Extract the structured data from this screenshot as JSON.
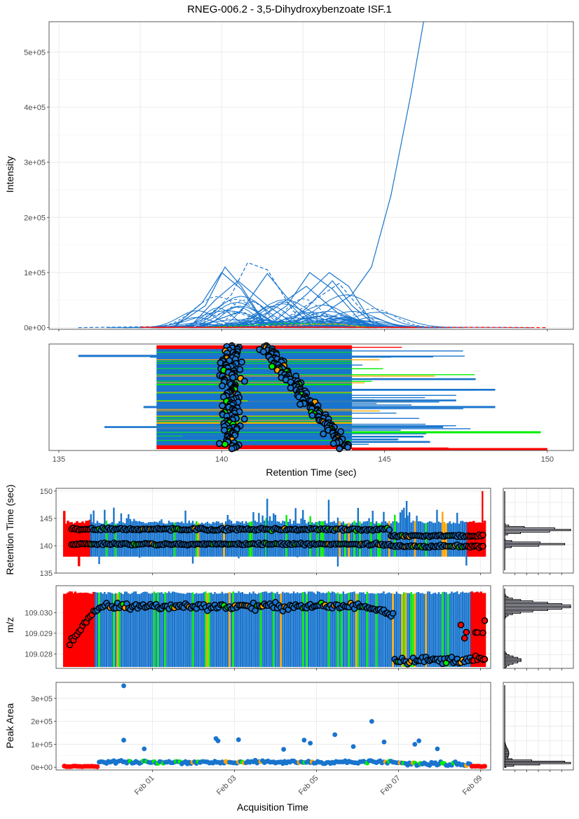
{
  "chart_data": [
    {
      "panel": "eic",
      "type": "line",
      "title": "RNEG-006.2 - 3,5-Dihydroxybenzoate ISF.1",
      "xlabel": "",
      "ylabel": "Intensity",
      "xlim": [
        134.7,
        150.8
      ],
      "ylim": [
        -3000,
        555000
      ],
      "y_ticks": [
        0,
        100000,
        200000,
        300000,
        400000,
        500000
      ],
      "y_tick_labels": [
        "0e+00",
        "1e+05",
        "2e+05",
        "3e+05",
        "4e+05",
        "5e+05"
      ],
      "grid": true,
      "colors": {
        "main": "#1874cd",
        "alt_green": "#00ee00",
        "alt_orange": "#ffa500",
        "outlier": "#ff0000"
      },
      "series": [
        {
          "style": "solid",
          "color": "#1874cd",
          "x": [
            137.0,
            141.0,
            143.0,
            144.0,
            144.6,
            145.2,
            145.8,
            146.2
          ],
          "y": [
            0,
            2000,
            20000,
            60000,
            110000,
            240000,
            420000,
            555000
          ]
        },
        {
          "style": "solid",
          "color": "#1874cd",
          "x": [
            138.5,
            139.5,
            140.1,
            140.6,
            141.3,
            142.5
          ],
          "y": [
            0,
            40000,
            110000,
            75000,
            10000,
            0
          ]
        },
        {
          "style": "solid",
          "color": "#1874cd",
          "x": [
            138.5,
            139.4,
            140.0,
            140.6,
            141.3,
            142.3
          ],
          "y": [
            0,
            45000,
            100000,
            70000,
            8000,
            0
          ]
        },
        {
          "style": "solid",
          "color": "#1874cd",
          "x": [
            139.2,
            140.6,
            141.4,
            142.0,
            142.8,
            143.6
          ],
          "y": [
            0,
            30000,
            98000,
            55000,
            10000,
            0
          ]
        },
        {
          "style": "solid",
          "color": "#1874cd",
          "x": [
            141.0,
            142.0,
            142.7,
            143.4,
            144.3,
            145.0
          ],
          "y": [
            0,
            40000,
            100000,
            70000,
            10000,
            0
          ]
        },
        {
          "style": "solid",
          "color": "#1874cd",
          "x": [
            141.4,
            142.6,
            143.3,
            143.9,
            144.6,
            145.2
          ],
          "y": [
            0,
            60000,
            100000,
            75000,
            10000,
            0
          ]
        },
        {
          "style": "solid",
          "color": "#1874cd",
          "x": [
            140.5,
            141.5,
            142.6,
            143.6,
            144.5
          ],
          "y": [
            0,
            30000,
            75000,
            25000,
            0
          ]
        },
        {
          "style": "solid",
          "color": "#1874cd",
          "x": [
            139.0,
            139.8,
            140.5,
            141.4,
            142.4
          ],
          "y": [
            0,
            50000,
            85000,
            40000,
            0
          ]
        },
        {
          "style": "solid",
          "color": "#1874cd",
          "x": [
            141.8,
            142.6,
            143.4,
            144.0,
            144.8
          ],
          "y": [
            0,
            35000,
            85000,
            40000,
            0
          ]
        },
        {
          "style": "dashed",
          "color": "#1874cd",
          "x": [
            139.3,
            140.3,
            140.8,
            141.4,
            142.2,
            143.0
          ],
          "y": [
            0,
            60000,
            118000,
            105000,
            30000,
            0
          ]
        },
        {
          "style": "dashed",
          "color": "#1874cd",
          "x": [
            141.5,
            142.6,
            143.6,
            144.4,
            145.0
          ],
          "y": [
            0,
            40000,
            80000,
            25000,
            0
          ]
        },
        {
          "style": "dashed",
          "color": "#1874cd",
          "x": [
            135.6,
            137.5,
            140.0,
            143.0,
            146.5,
            149.5
          ],
          "y": [
            0,
            1500,
            3000,
            2500,
            1000,
            0
          ]
        },
        {
          "style": "dashed",
          "color": "#00ee00",
          "x": [
            139.0,
            140.5,
            142.0,
            143.5,
            144.8
          ],
          "y": [
            0,
            3000,
            8000,
            6000,
            0
          ]
        },
        {
          "style": "dashed",
          "color": "#ffa500",
          "x": [
            140.5,
            142.0,
            143.5,
            144.5
          ],
          "y": [
            0,
            4000,
            7000,
            0
          ]
        },
        {
          "style": "solid",
          "color": "#ff0000",
          "x": [
            138.0,
            140.0,
            142.0,
            144.0,
            146.0
          ],
          "y": [
            0,
            800,
            1200,
            800,
            0
          ]
        },
        {
          "style": "dashed",
          "color": "#ff0000",
          "x": [
            144.5,
            146.5,
            148.5,
            150.0
          ],
          "y": [
            0,
            500,
            400,
            0
          ]
        }
      ],
      "description_of_bulk": "Many additional overlapping peaks between 139 and 145 sec with intensities mostly below 60000."
    },
    {
      "panel": "rt_ranges",
      "type": "scatter",
      "xlabel": "Retention Time (sec)",
      "ylabel": "",
      "xlim": [
        134.7,
        150.8
      ],
      "x_ticks": [
        135,
        140,
        145,
        150
      ],
      "x_tick_labels": [
        "135",
        "140",
        "145",
        "150"
      ],
      "grid": false,
      "notes": "Horizontal bars = integrated RT range per sample; circles = RT at peak apex. Samples stacked vertically.",
      "bar_left_typical": 138.0,
      "bar_right_typical": 144.0,
      "extreme_bars": [
        {
          "x_start": 135.6,
          "x_end": 138.0,
          "color": "#1874cd"
        },
        {
          "x_start": 137.6,
          "x_end": 148.4,
          "color": "#1874cd"
        },
        {
          "x_start": 144.0,
          "x_end": 149.8,
          "color": "#00ee00"
        },
        {
          "x_start": 144.0,
          "x_end": 150.0,
          "color": "#ff0000"
        }
      ],
      "apex_clusters": [
        {
          "x_center": 140.3,
          "label": "early cluster"
        },
        {
          "x_center": 142.6,
          "label": "late cluster drifting from 141.5 to 143.5"
        }
      ]
    },
    {
      "panel": "rt_vs_time",
      "type": "scatter",
      "xlabel": "",
      "ylabel": "Retention Time (sec)",
      "ylim": [
        135,
        150.5
      ],
      "y_ticks": [
        135,
        140,
        145,
        150
      ],
      "y_tick_labels": [
        "135",
        "140",
        "145",
        "150"
      ],
      "x_ticks": [
        "Feb 01",
        "Feb 03",
        "Feb 05",
        "Feb 07",
        "Feb 09"
      ],
      "x_day_range": [
        -1.35,
        9.25
      ],
      "range_band": [
        138.0,
        144.0
      ],
      "apex_levels": {
        "upper": 143.0,
        "lower": 140.3
      },
      "late_upper_drift_to": 141.8
    },
    {
      "panel": "mz_vs_time",
      "type": "scatter",
      "xlabel": "",
      "ylabel": "m/z",
      "ylim": [
        109.0273,
        109.0313
      ],
      "y_ticks": [
        109.028,
        109.029,
        109.03
      ],
      "y_tick_labels": [
        "109.028",
        "109.029",
        "109.030"
      ],
      "x_ticks": [
        "Feb 01",
        "Feb 03",
        "Feb 05",
        "Feb 07",
        "Feb 09"
      ],
      "typical_mz": 109.0303,
      "late_mz": 109.0277,
      "early_outliers_mz": [
        109.0285,
        109.0302
      ]
    },
    {
      "panel": "area_vs_time",
      "type": "scatter",
      "xlabel": "Acquisition Time",
      "ylabel": "Peak Area",
      "ylim": [
        -12000,
        370000
      ],
      "y_ticks": [
        0,
        100000,
        200000,
        300000
      ],
      "y_tick_labels": [
        "0e+00",
        "1e+05",
        "2e+05",
        "3e+05"
      ],
      "x_ticks": [
        "Feb 01",
        "Feb 03",
        "Feb 05",
        "Feb 07",
        "Feb 09"
      ],
      "notable_points": [
        {
          "day": 0.3,
          "y": 355000
        },
        {
          "day": 0.3,
          "y": 118000
        },
        {
          "day": 0.8,
          "y": 80000
        },
        {
          "day": 2.55,
          "y": 125000
        },
        {
          "day": 2.6,
          "y": 115000
        },
        {
          "day": 3.1,
          "y": 120000
        },
        {
          "day": 4.7,
          "y": 118000
        },
        {
          "day": 4.85,
          "y": 105000
        },
        {
          "day": 5.45,
          "y": 142000
        },
        {
          "day": 6.35,
          "y": 200000
        },
        {
          "day": 6.65,
          "y": 110000
        },
        {
          "day": 7.5,
          "y": 115000
        },
        {
          "day": 7.4,
          "y": 100000
        },
        {
          "day": 7.95,
          "y": 80000
        },
        {
          "day": 5.9,
          "y": 90000
        },
        {
          "day": 4.2,
          "y": 78000
        }
      ],
      "baseline_area": 22000
    }
  ],
  "histograms": {
    "rt": {
      "peaks": [
        140.3,
        142.9
      ]
    },
    "mz": {
      "peaks": [
        109.0303,
        109.0277
      ]
    },
    "area": {
      "peak": 20000
    }
  }
}
